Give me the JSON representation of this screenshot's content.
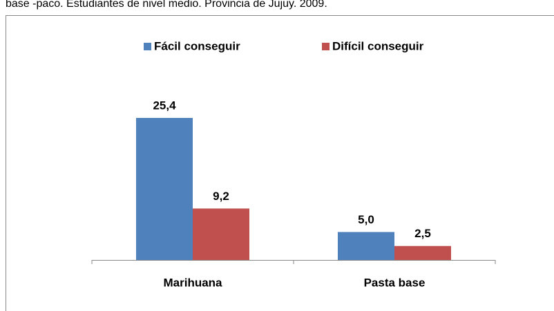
{
  "chart_data": {
    "type": "bar",
    "title": "base -paco. Estudiantes de nivel medio. Provincia de Jujuy. 2009.",
    "categories": [
      "Marihuana",
      "Pasta base"
    ],
    "series": [
      {
        "name": "Fácil conseguir",
        "color": "#4f81bd",
        "values": [
          25.4,
          5.0
        ],
        "value_labels": [
          "25,4",
          "5,0"
        ]
      },
      {
        "name": "Difícil conseguir",
        "color": "#c0504d",
        "values": [
          9.2,
          2.5
        ],
        "value_labels": [
          "9,2",
          "2,5"
        ]
      }
    ],
    "legend": "top"
  }
}
